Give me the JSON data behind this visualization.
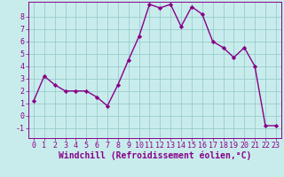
{
  "x": [
    0,
    1,
    2,
    3,
    4,
    5,
    6,
    7,
    8,
    9,
    10,
    11,
    12,
    13,
    14,
    15,
    16,
    17,
    18,
    19,
    20,
    21,
    22,
    23
  ],
  "y": [
    1.2,
    3.2,
    2.5,
    2.0,
    2.0,
    2.0,
    1.5,
    0.8,
    2.5,
    4.5,
    6.4,
    9.0,
    8.7,
    9.0,
    7.2,
    8.8,
    8.2,
    6.0,
    5.5,
    4.7,
    5.5,
    4.0,
    -0.8,
    -0.8
  ],
  "line_color": "#880088",
  "marker": "D",
  "marker_size": 2.2,
  "background_color": "#c8ecec",
  "grid_color": "#99cccc",
  "xlabel": "Windchill (Refroidissement éolien,°C)",
  "xlabel_fontsize": 7,
  "ylabel_ticks": [
    -1,
    0,
    1,
    2,
    3,
    4,
    5,
    6,
    7,
    8
  ],
  "xtick_labels": [
    "0",
    "1",
    "2",
    "3",
    "4",
    "5",
    "6",
    "7",
    "8",
    "9",
    "10",
    "11",
    "12",
    "13",
    "14",
    "15",
    "16",
    "17",
    "18",
    "19",
    "20",
    "21",
    "22",
    "23"
  ],
  "xlim": [
    -0.5,
    23.5
  ],
  "ylim": [
    -1.8,
    9.2
  ],
  "tick_fontsize": 6.0,
  "line_width": 1.0
}
